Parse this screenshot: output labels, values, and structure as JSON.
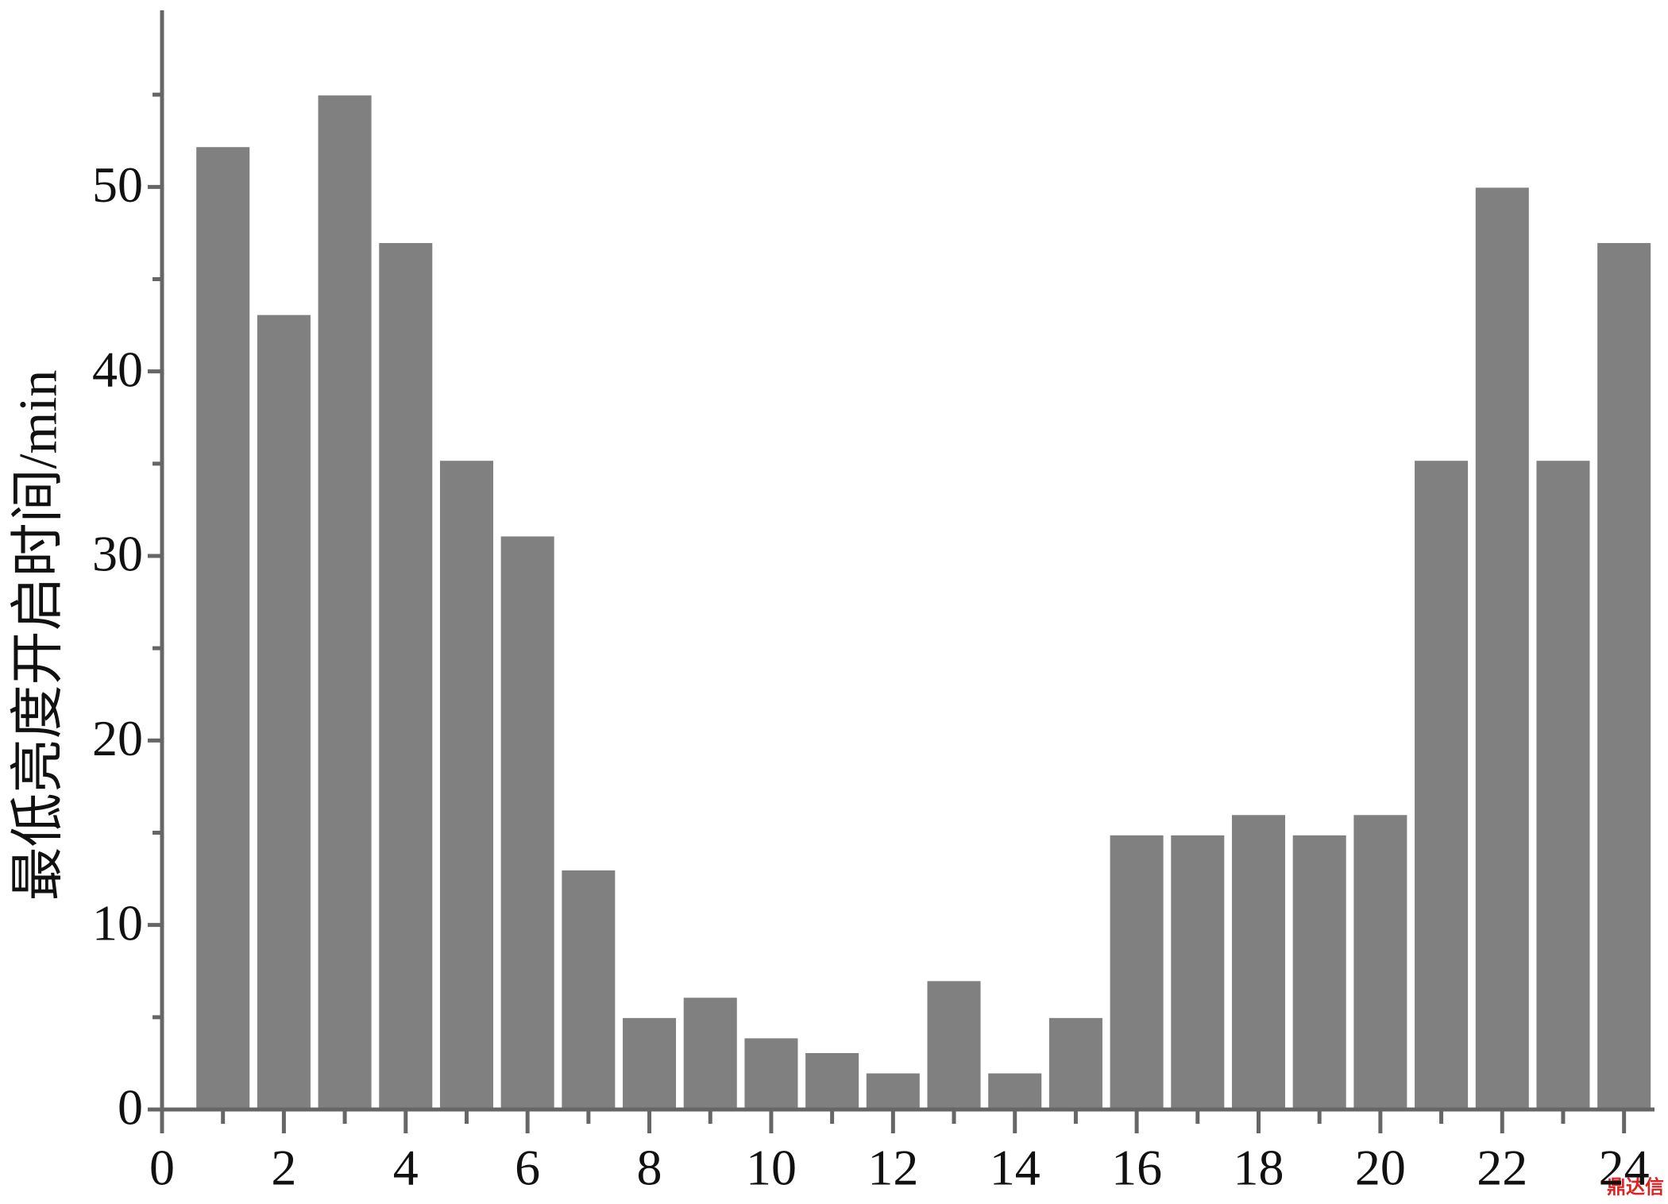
{
  "chart_data": {
    "type": "bar",
    "ylabel": "最低亮度开启时间/min",
    "x": [
      1,
      2,
      3,
      4,
      5,
      6,
      7,
      8,
      9,
      10,
      11,
      12,
      13,
      14,
      15,
      16,
      17,
      18,
      19,
      20,
      21,
      22,
      23,
      24
    ],
    "values": [
      52.2,
      43.1,
      55,
      47,
      35.2,
      31.1,
      13,
      5,
      6.1,
      3.9,
      3.1,
      2,
      7,
      2,
      5,
      14.9,
      14.9,
      16,
      14.9,
      16,
      35.2,
      50,
      35.2,
      47
    ],
    "color": "#808080",
    "xlim": [
      0,
      24.5
    ],
    "xticks": [
      0,
      2,
      4,
      6,
      8,
      10,
      12,
      14,
      16,
      18,
      20,
      22,
      24
    ],
    "xminor_ticks": [
      1,
      3,
      5,
      7,
      9,
      11,
      13,
      15,
      17,
      19,
      21,
      23
    ],
    "ylim": [
      0,
      60
    ],
    "yticks": [
      0,
      10,
      20,
      30,
      40,
      50
    ],
    "yminor_ticks": [
      5,
      15,
      25,
      35,
      45,
      55
    ],
    "watermark": "鼎达信"
  }
}
